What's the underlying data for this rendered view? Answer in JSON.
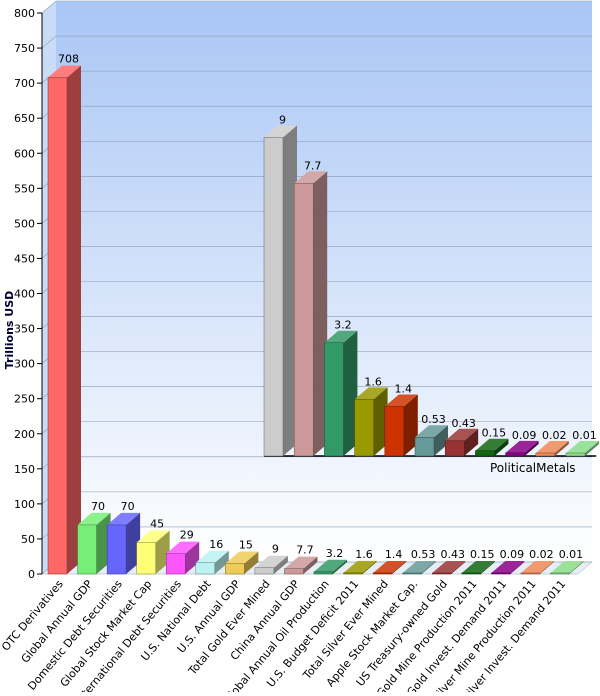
{
  "chart_data": [
    {
      "type": "bar",
      "ylabel": "Trillions USD",
      "ylim": [
        0,
        800
      ],
      "yticks": [
        0,
        50,
        100,
        150,
        200,
        250,
        300,
        350,
        400,
        450,
        500,
        550,
        600,
        650,
        700,
        750,
        800
      ],
      "grid": true,
      "categories": [
        "OTC Derivatives",
        "Global Annual GDP",
        "Domestic Debt Securities",
        "Global Stock Market Cap",
        "International Debt Securities",
        "U.S. National Debt",
        "U.S. Annual GDP",
        "Total Gold Ever Mined",
        "China Annual GDP",
        "Global Annual Oil Production",
        "U.S. Budget Deficit 2011",
        "Total Silver Ever Mined",
        "Apple Stock Market Cap.",
        "US Treasury-owned Gold",
        "Gold Mine Production 2011",
        "Gold Invest. Demand 2011",
        "Silver Mine Production 2011",
        "Silver Invest. Demand 2011"
      ],
      "values": [
        708,
        70,
        70,
        45,
        29,
        16,
        15,
        9,
        7.7,
        3.2,
        1.6,
        1.4,
        0.53,
        0.43,
        0.15,
        0.09,
        0.02,
        0.01
      ],
      "value_labels": [
        "708",
        "70",
        "70",
        "45",
        "29",
        "16",
        "15",
        "9",
        "7.7",
        "3.2",
        "1.6",
        "1.4",
        "0.53",
        "0.43",
        "0.15",
        "0.09",
        "0.02",
        "0.01"
      ],
      "colors": [
        "#ff6666",
        "#77ee77",
        "#6666ff",
        "#ffff77",
        "#ff55ff",
        "#bbf2f2",
        "#eecc55",
        "#cccccc",
        "#cc9999",
        "#339966",
        "#999900",
        "#cc3300",
        "#669999",
        "#993333",
        "#116611",
        "#880088",
        "#ee8855",
        "#88dd88"
      ]
    },
    {
      "type": "bar",
      "categories": [
        "Total Gold Ever Mined",
        "China Annual GDP",
        "Global Annual Oil Production",
        "U.S. Budget Deficit 2011",
        "Total Silver Ever Mined",
        "Apple Stock Market Cap.",
        "US Treasury-owned Gold",
        "Gold Mine Production 2011",
        "Gold Invest. Demand 2011",
        "Silver Mine Production 2011",
        "Silver Invest. Demand 2011"
      ],
      "values": [
        9,
        7.7,
        3.2,
        1.6,
        1.4,
        0.53,
        0.43,
        0.15,
        0.09,
        0.02,
        0.01
      ],
      "value_labels": [
        "9",
        "7.7",
        "3.2",
        "1.6",
        "1.4",
        "0.53",
        "0.43",
        "0.15",
        "0.09",
        "0.02",
        "0.01"
      ],
      "ylim": [
        0,
        10
      ],
      "colors": [
        "#cccccc",
        "#cc9999",
        "#339966",
        "#999900",
        "#cc3300",
        "#669999",
        "#993333",
        "#116611",
        "#880088",
        "#ee8855",
        "#88dd88"
      ]
    }
  ],
  "watermark": "PoliticalMetals"
}
